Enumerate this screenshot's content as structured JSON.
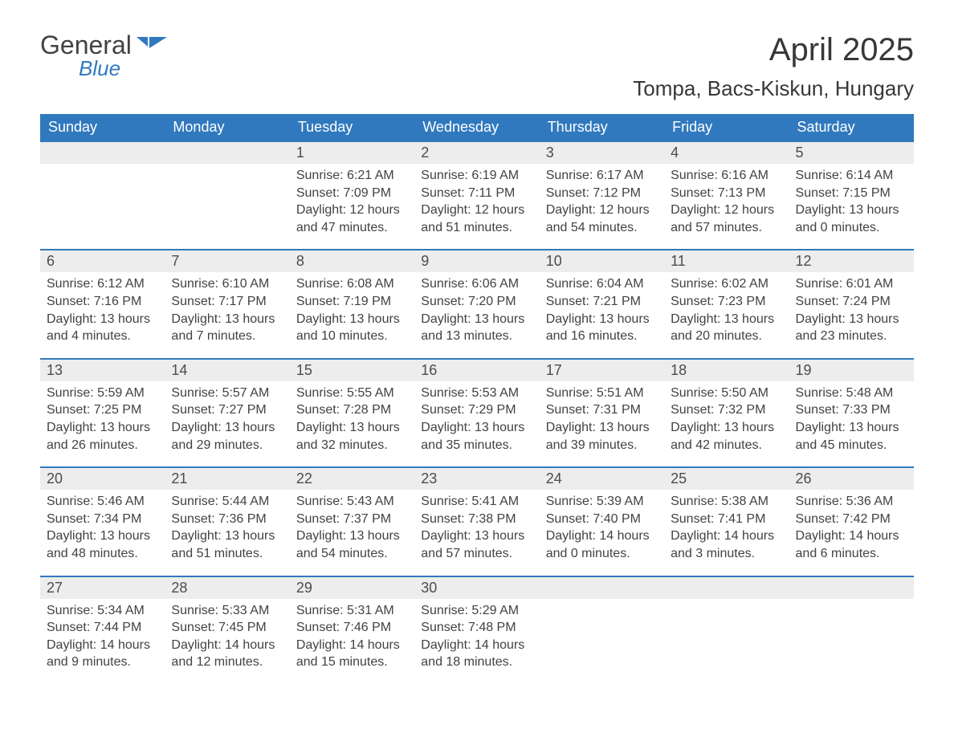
{
  "logo": {
    "word1": "General",
    "word2": "Blue",
    "color_dark": "#424242",
    "color_blue": "#3179be"
  },
  "title": "April 2025",
  "location": "Tompa, Bacs-Kiskun, Hungary",
  "colors": {
    "header_bg": "#3179be",
    "header_text": "#ffffff",
    "daynum_bg": "#ededed",
    "border_blue": "#3179be",
    "text": "#424242",
    "background": "#ffffff"
  },
  "daysOfWeek": [
    "Sunday",
    "Monday",
    "Tuesday",
    "Wednesday",
    "Thursday",
    "Friday",
    "Saturday"
  ],
  "startOffset": 2,
  "cells": [
    {
      "day": 1,
      "sunrise": "6:21 AM",
      "sunset": "7:09 PM",
      "daylight": "12 hours and 47 minutes."
    },
    {
      "day": 2,
      "sunrise": "6:19 AM",
      "sunset": "7:11 PM",
      "daylight": "12 hours and 51 minutes."
    },
    {
      "day": 3,
      "sunrise": "6:17 AM",
      "sunset": "7:12 PM",
      "daylight": "12 hours and 54 minutes."
    },
    {
      "day": 4,
      "sunrise": "6:16 AM",
      "sunset": "7:13 PM",
      "daylight": "12 hours and 57 minutes."
    },
    {
      "day": 5,
      "sunrise": "6:14 AM",
      "sunset": "7:15 PM",
      "daylight": "13 hours and 0 minutes."
    },
    {
      "day": 6,
      "sunrise": "6:12 AM",
      "sunset": "7:16 PM",
      "daylight": "13 hours and 4 minutes."
    },
    {
      "day": 7,
      "sunrise": "6:10 AM",
      "sunset": "7:17 PM",
      "daylight": "13 hours and 7 minutes."
    },
    {
      "day": 8,
      "sunrise": "6:08 AM",
      "sunset": "7:19 PM",
      "daylight": "13 hours and 10 minutes."
    },
    {
      "day": 9,
      "sunrise": "6:06 AM",
      "sunset": "7:20 PM",
      "daylight": "13 hours and 13 minutes."
    },
    {
      "day": 10,
      "sunrise": "6:04 AM",
      "sunset": "7:21 PM",
      "daylight": "13 hours and 16 minutes."
    },
    {
      "day": 11,
      "sunrise": "6:02 AM",
      "sunset": "7:23 PM",
      "daylight": "13 hours and 20 minutes."
    },
    {
      "day": 12,
      "sunrise": "6:01 AM",
      "sunset": "7:24 PM",
      "daylight": "13 hours and 23 minutes."
    },
    {
      "day": 13,
      "sunrise": "5:59 AM",
      "sunset": "7:25 PM",
      "daylight": "13 hours and 26 minutes."
    },
    {
      "day": 14,
      "sunrise": "5:57 AM",
      "sunset": "7:27 PM",
      "daylight": "13 hours and 29 minutes."
    },
    {
      "day": 15,
      "sunrise": "5:55 AM",
      "sunset": "7:28 PM",
      "daylight": "13 hours and 32 minutes."
    },
    {
      "day": 16,
      "sunrise": "5:53 AM",
      "sunset": "7:29 PM",
      "daylight": "13 hours and 35 minutes."
    },
    {
      "day": 17,
      "sunrise": "5:51 AM",
      "sunset": "7:31 PM",
      "daylight": "13 hours and 39 minutes."
    },
    {
      "day": 18,
      "sunrise": "5:50 AM",
      "sunset": "7:32 PM",
      "daylight": "13 hours and 42 minutes."
    },
    {
      "day": 19,
      "sunrise": "5:48 AM",
      "sunset": "7:33 PM",
      "daylight": "13 hours and 45 minutes."
    },
    {
      "day": 20,
      "sunrise": "5:46 AM",
      "sunset": "7:34 PM",
      "daylight": "13 hours and 48 minutes."
    },
    {
      "day": 21,
      "sunrise": "5:44 AM",
      "sunset": "7:36 PM",
      "daylight": "13 hours and 51 minutes."
    },
    {
      "day": 22,
      "sunrise": "5:43 AM",
      "sunset": "7:37 PM",
      "daylight": "13 hours and 54 minutes."
    },
    {
      "day": 23,
      "sunrise": "5:41 AM",
      "sunset": "7:38 PM",
      "daylight": "13 hours and 57 minutes."
    },
    {
      "day": 24,
      "sunrise": "5:39 AM",
      "sunset": "7:40 PM",
      "daylight": "14 hours and 0 minutes."
    },
    {
      "day": 25,
      "sunrise": "5:38 AM",
      "sunset": "7:41 PM",
      "daylight": "14 hours and 3 minutes."
    },
    {
      "day": 26,
      "sunrise": "5:36 AM",
      "sunset": "7:42 PM",
      "daylight": "14 hours and 6 minutes."
    },
    {
      "day": 27,
      "sunrise": "5:34 AM",
      "sunset": "7:44 PM",
      "daylight": "14 hours and 9 minutes."
    },
    {
      "day": 28,
      "sunrise": "5:33 AM",
      "sunset": "7:45 PM",
      "daylight": "14 hours and 12 minutes."
    },
    {
      "day": 29,
      "sunrise": "5:31 AM",
      "sunset": "7:46 PM",
      "daylight": "14 hours and 15 minutes."
    },
    {
      "day": 30,
      "sunrise": "5:29 AM",
      "sunset": "7:48 PM",
      "daylight": "14 hours and 18 minutes."
    }
  ],
  "labels": {
    "sunrise": "Sunrise:",
    "sunset": "Sunset:",
    "daylight": "Daylight:"
  }
}
